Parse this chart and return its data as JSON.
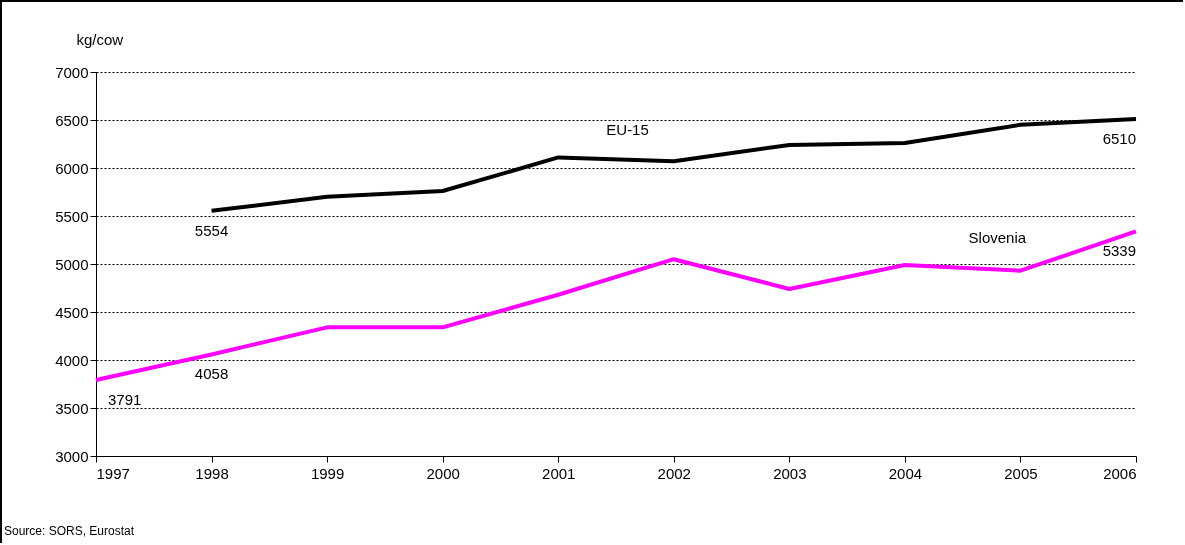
{
  "chart_data": {
    "type": "line",
    "ylabel": "kg/cow",
    "x": [
      1997,
      1998,
      1999,
      2000,
      2001,
      2002,
      2003,
      2004,
      2005,
      2006
    ],
    "series": [
      {
        "name": "EU-15",
        "color": "#000000",
        "values": [
          null,
          5554,
          5700,
          5760,
          6110,
          6070,
          6240,
          6260,
          6450,
          6510
        ],
        "value_labels": [
          null,
          "5554",
          null,
          null,
          null,
          null,
          null,
          null,
          null,
          "6510"
        ]
      },
      {
        "name": "Slovenia",
        "color": "#ff00ff",
        "values": [
          3791,
          4058,
          4340,
          4340,
          4680,
          5050,
          4740,
          4990,
          4930,
          5339
        ],
        "value_labels": [
          "3791",
          "4058",
          null,
          null,
          null,
          null,
          null,
          null,
          null,
          "5339"
        ]
      }
    ],
    "xlim": [
      1997,
      2006
    ],
    "xticks": [
      1997,
      1998,
      1999,
      2000,
      2001,
      2002,
      2003,
      2004,
      2005,
      2006
    ],
    "ylim": [
      3000,
      7000
    ],
    "yticks": [
      3000,
      3500,
      4000,
      4500,
      5000,
      5500,
      6000,
      6500,
      7000
    ],
    "grid": "y",
    "legend": false,
    "line_style": "solid",
    "marker": "none",
    "annotations": [
      "Source: SORS, Eurostat"
    ]
  }
}
